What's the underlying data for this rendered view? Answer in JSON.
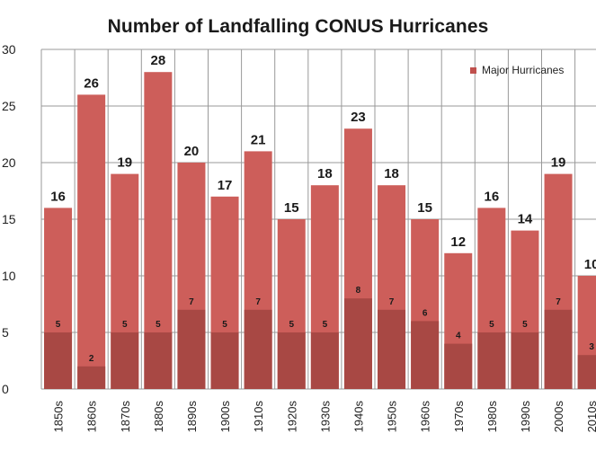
{
  "chart_data": {
    "type": "bar",
    "title": "Number of Landfalling CONUS Hurricanes",
    "xlabel": "",
    "ylabel": "",
    "categories": [
      "1850s",
      "1860s",
      "1870s",
      "1880s",
      "1890s",
      "1900s",
      "1910s",
      "1920s",
      "1930s",
      "1940s",
      "1950s",
      "1960s",
      "1970s",
      "1980s",
      "1990s",
      "2000s",
      "2010s"
    ],
    "series": [
      {
        "values": [
          16,
          26,
          19,
          28,
          20,
          17,
          21,
          15,
          18,
          23,
          18,
          15,
          12,
          16,
          14,
          19,
          10
        ]
      },
      {
        "name": "Major Hurricanes",
        "values": [
          5,
          2,
          5,
          5,
          7,
          5,
          7,
          5,
          5,
          8,
          7,
          6,
          4,
          5,
          5,
          7,
          3
        ]
      }
    ],
    "ylim": [
      0,
      30
    ],
    "yticks": [
      0,
      5,
      10,
      15,
      20,
      25,
      30
    ],
    "grid": true,
    "legend_position": "top-right",
    "colors": {
      "all_bar": "#cd5e5a",
      "major_bar": "#a84844",
      "legend_swatch": "#c0504d",
      "grid": "#999999"
    }
  }
}
